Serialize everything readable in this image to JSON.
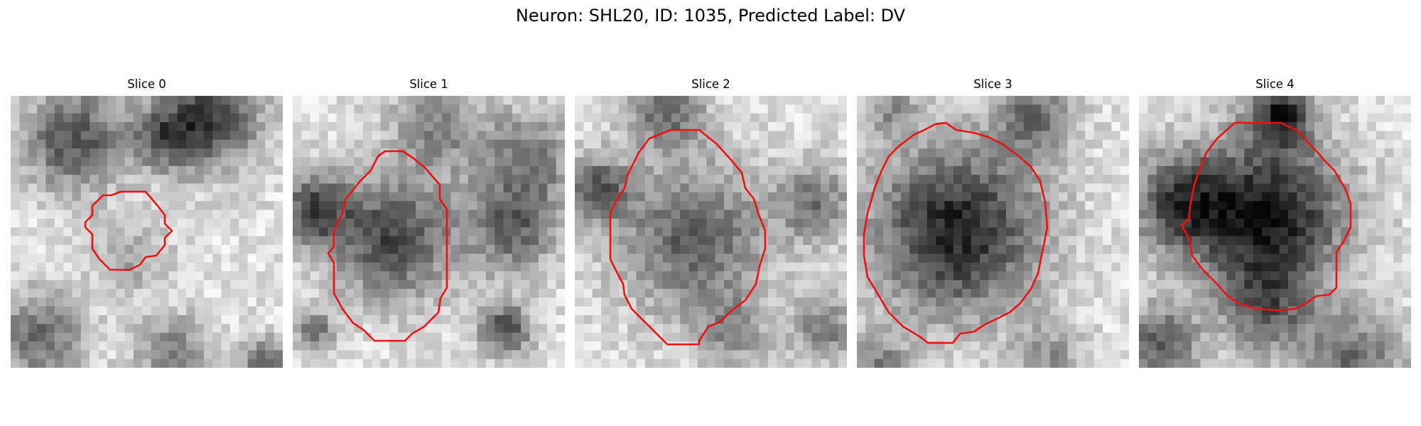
{
  "figure": {
    "title": "Neuron: SHL20, ID: 1035, Predicted Label: DV"
  },
  "colors": {
    "contour": "#ee1111",
    "background": "#ffffff"
  },
  "panels": [
    {
      "title": "Slice 0"
    },
    {
      "title": "Slice 1"
    },
    {
      "title": "Slice 2"
    },
    {
      "title": "Slice 3"
    },
    {
      "title": "Slice 4"
    }
  ]
}
